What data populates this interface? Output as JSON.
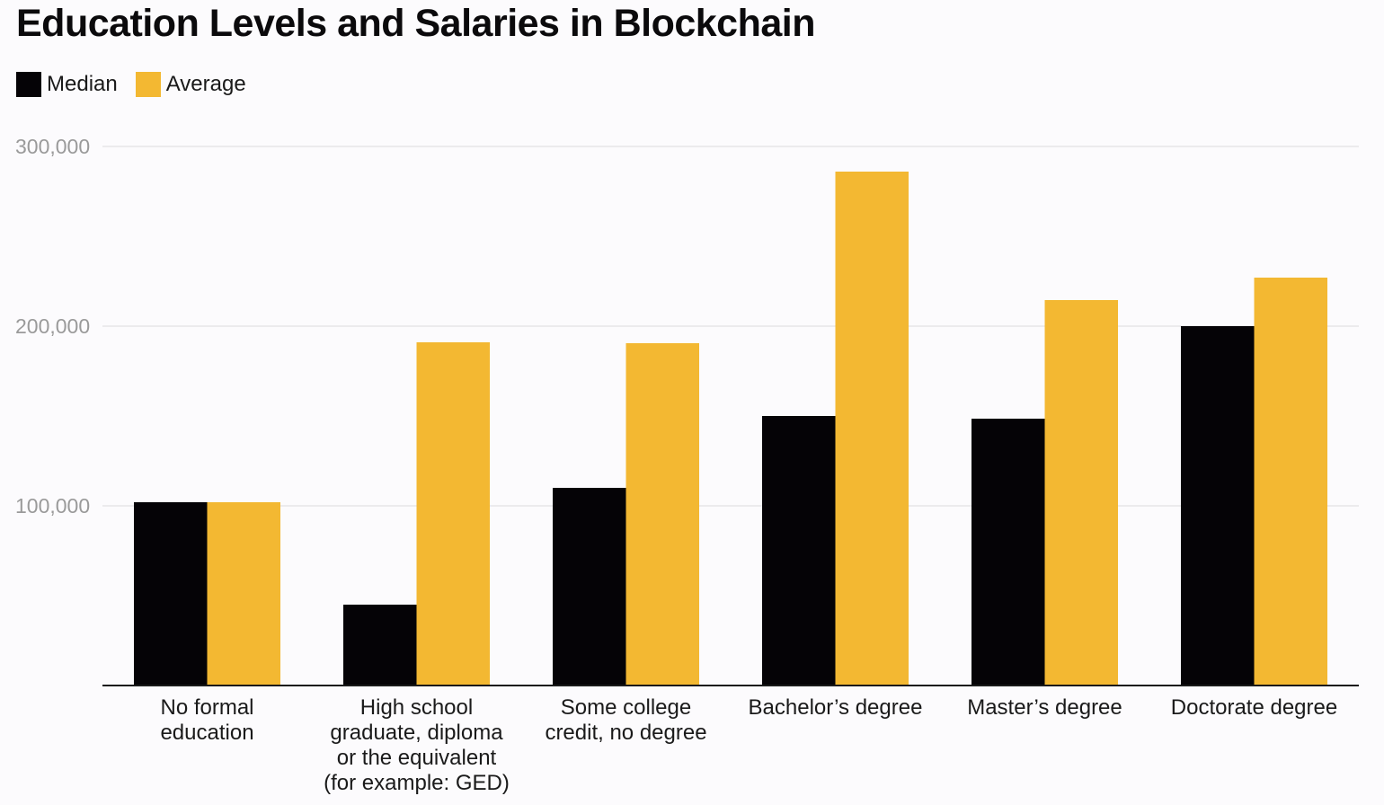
{
  "chart_data": {
    "type": "bar",
    "title": "Education Levels and Salaries in Blockchain",
    "categories": [
      [
        "No formal",
        "education"
      ],
      [
        "High school",
        "graduate, diploma",
        "or the equivalent",
        "(for example: GED)"
      ],
      [
        "Some college",
        "credit, no degree"
      ],
      [
        "Bachelor’s degree"
      ],
      [
        "Master’s degree"
      ],
      [
        "Doctorate degree"
      ]
    ],
    "series": [
      {
        "name": "Median",
        "color": "#050306",
        "values": [
          102000,
          45000,
          110000,
          150000,
          148500,
          200000
        ]
      },
      {
        "name": "Average",
        "color": "#f3b832",
        "values": [
          102000,
          191000,
          190500,
          286000,
          214500,
          227000
        ]
      }
    ],
    "yticks": [
      100000,
      200000,
      300000
    ],
    "ytick_labels": [
      "100,000",
      "200,000",
      "300,000"
    ],
    "ylim": [
      0,
      300000
    ],
    "grid": true,
    "legend_position": "top-left",
    "xlabel": "",
    "ylabel": ""
  }
}
